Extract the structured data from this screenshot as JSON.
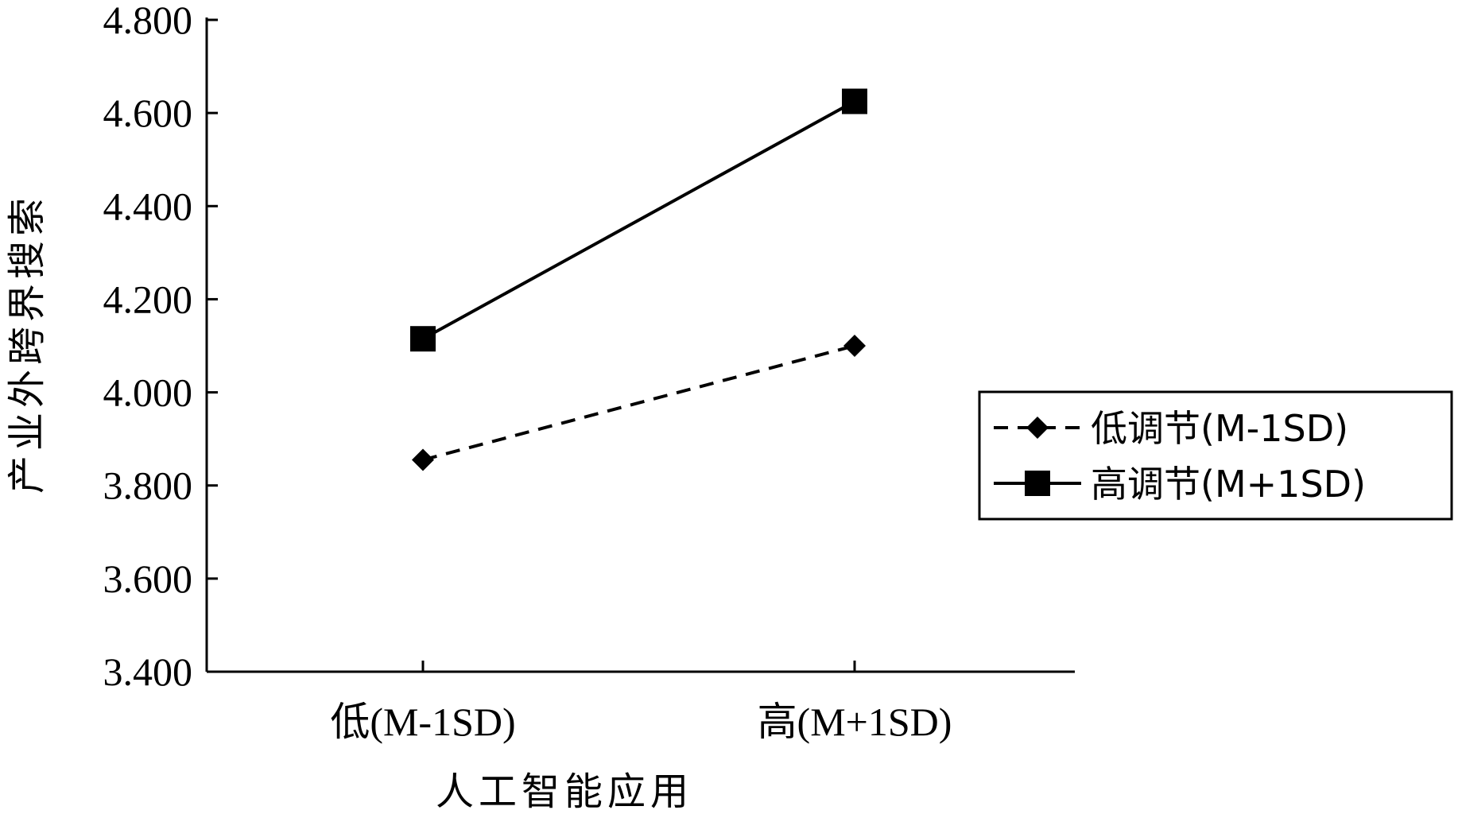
{
  "chart_data": {
    "type": "line",
    "xlabel": "人工智能应用",
    "ylabel": "产业外跨界搜索",
    "categories": [
      "低(M-1SD)",
      "高(M+1SD)"
    ],
    "ylim": [
      3.4,
      4.8
    ],
    "yticks": [
      "3.400",
      "3.600",
      "3.800",
      "4.000",
      "4.200",
      "4.400",
      "4.600",
      "4.800"
    ],
    "grid": false,
    "legend_position": "right",
    "series": [
      {
        "name": "低调节(M-1SD)",
        "values": [
          3.855,
          4.1
        ],
        "line": "dashed",
        "marker": "diamond",
        "color": "#000000"
      },
      {
        "name": "高调节(M+1SD)",
        "values": [
          4.115,
          4.625
        ],
        "line": "solid",
        "marker": "square",
        "color": "#000000"
      }
    ]
  }
}
